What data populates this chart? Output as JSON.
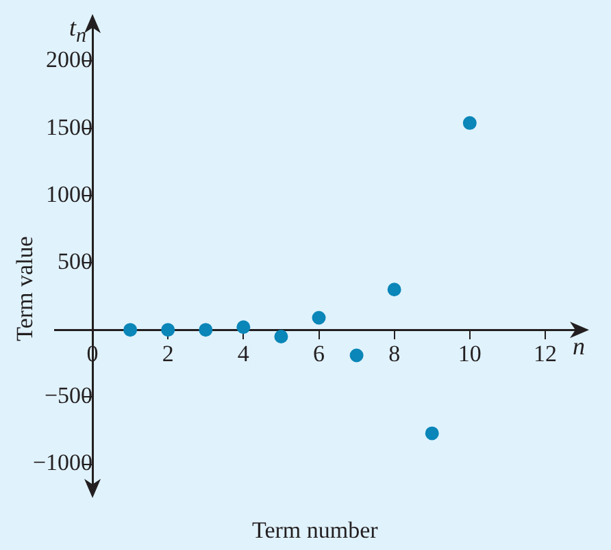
{
  "chart_data": {
    "type": "scatter",
    "xlabel": "Term number",
    "ylabel": "Term value",
    "annotations": [
      "t$_{n}$",
      "n"
    ],
    "x": [
      1,
      2,
      3,
      4,
      5,
      6,
      7,
      8,
      9,
      10
    ],
    "series": [
      {
        "color": "#0a86b8",
        "values": [
          0,
          0,
          0,
          20,
          -50,
          90,
          -190,
          300,
          -770,
          1540
        ]
      }
    ],
    "xlim": [
      -1,
      12.8
    ],
    "ylim": [
      -1150,
      2250
    ],
    "xticks": [
      0,
      2,
      4,
      6,
      8,
      10,
      12
    ],
    "yticks": [
      -1000,
      -500,
      500,
      1000,
      1500,
      2000
    ],
    "marker": "circle",
    "legend": false
  }
}
